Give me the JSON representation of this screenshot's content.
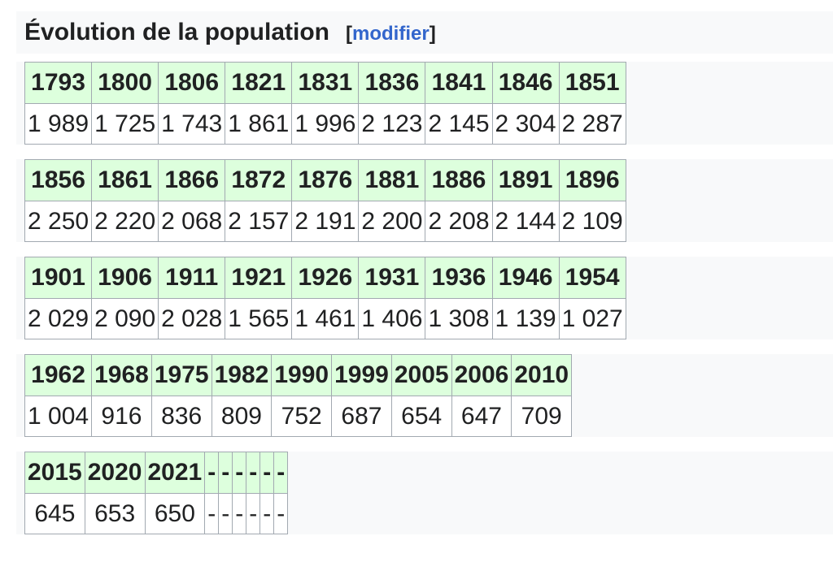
{
  "header": {
    "title": "Évolution de la population",
    "edit": {
      "open": "[",
      "label": "modifier",
      "close": "]"
    }
  },
  "tables": [
    {
      "years": [
        "1793",
        "1800",
        "1806",
        "1821",
        "1831",
        "1836",
        "1841",
        "1846",
        "1851"
      ],
      "values": [
        "1 989",
        "1 725",
        "1 743",
        "1 861",
        "1 996",
        "2 123",
        "2 145",
        "2 304",
        "2 287"
      ]
    },
    {
      "years": [
        "1856",
        "1861",
        "1866",
        "1872",
        "1876",
        "1881",
        "1886",
        "1891",
        "1896"
      ],
      "values": [
        "2 250",
        "2 220",
        "2 068",
        "2 157",
        "2 191",
        "2 200",
        "2 208",
        "2 144",
        "2 109"
      ]
    },
    {
      "years": [
        "1901",
        "1906",
        "1911",
        "1921",
        "1926",
        "1931",
        "1936",
        "1946",
        "1954"
      ],
      "values": [
        "2 029",
        "2 090",
        "2 028",
        "1 565",
        "1 461",
        "1 406",
        "1 308",
        "1 139",
        "1 027"
      ]
    },
    {
      "years": [
        "1962",
        "1968",
        "1975",
        "1982",
        "1990",
        "1999",
        "2005",
        "2006",
        "2010"
      ],
      "values": [
        "1 004",
        "916",
        "836",
        "809",
        "752",
        "687",
        "654",
        "647",
        "709"
      ]
    },
    {
      "years": [
        "2015",
        "2020",
        "2021",
        "-",
        "-",
        "-",
        "-",
        "-",
        "-"
      ],
      "values": [
        "645",
        "653",
        "650",
        "-",
        "-",
        "-",
        "-",
        "-",
        "-"
      ]
    }
  ]
}
